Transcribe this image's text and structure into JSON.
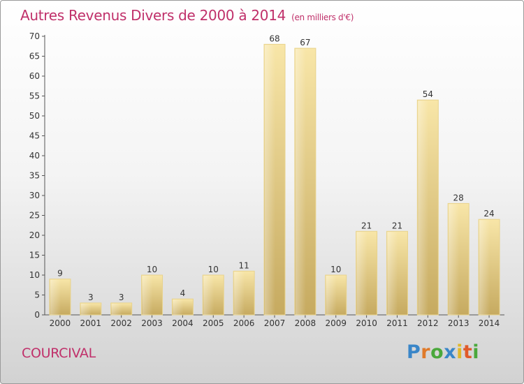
{
  "header": {
    "title": "Autres Revenus Divers de 2000 à 2014",
    "unit": "(en milliers d'€)"
  },
  "footer": {
    "town": "COURCIVAL",
    "logo_text": "Proxiti"
  },
  "colors": {
    "title": "#c0306a",
    "bar_light": "#f7e3a2",
    "bar_dark": "#c8ad63",
    "logo_letters": [
      "#3a86c8",
      "#e07a2a",
      "#4aa83c",
      "#3a86c8",
      "#e0b82a",
      "#e05a2a",
      "#4aa83c"
    ]
  },
  "chart_data": {
    "type": "bar",
    "title": "Autres Revenus Divers de 2000 à 2014",
    "subtitle": "(en milliers d'€)",
    "xlabel": "",
    "ylabel": "",
    "categories": [
      "2000",
      "2001",
      "2002",
      "2003",
      "2004",
      "2005",
      "2006",
      "2007",
      "2008",
      "2009",
      "2010",
      "2011",
      "2012",
      "2013",
      "2014"
    ],
    "values": [
      9,
      3,
      3,
      10,
      4,
      10,
      11,
      68,
      67,
      10,
      21,
      21,
      54,
      28,
      24
    ],
    "ylim": [
      0,
      70
    ],
    "yticks": [
      0,
      5,
      10,
      15,
      20,
      25,
      30,
      35,
      40,
      45,
      50,
      55,
      60,
      65,
      70
    ],
    "grid": false,
    "legend": "none"
  }
}
